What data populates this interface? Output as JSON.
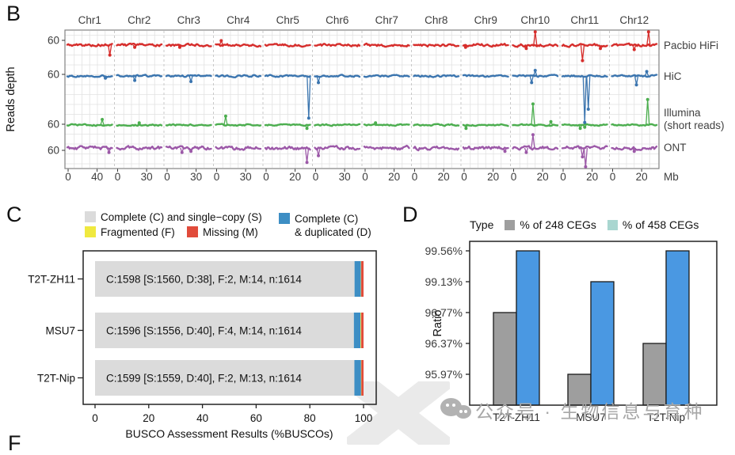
{
  "panel_labels": {
    "b": "B",
    "c": "C",
    "d": "D",
    "f_partial": "F"
  },
  "watermark": {
    "icon": "wechat-icon",
    "text": "公众号 · 生物信息与育种"
  },
  "chart_data": [
    {
      "id": "B",
      "type": "line",
      "description": "Sequencing reads depth along 12 rice chromosomes for four technologies",
      "facets": [
        "Chr1",
        "Chr2",
        "Chr3",
        "Chr4",
        "Chr5",
        "Chr6",
        "Chr7",
        "Chr8",
        "Chr9",
        "Chr10",
        "Chr11",
        "Chr12"
      ],
      "facet_xticks": [
        [
          "0",
          "40"
        ],
        [
          "0",
          "30"
        ],
        [
          "0",
          "30"
        ],
        [
          "0",
          "30"
        ],
        [
          "0",
          "20"
        ],
        [
          "0",
          "30"
        ],
        [
          "0",
          "20"
        ],
        [
          "0",
          "20"
        ],
        [
          "0",
          "20"
        ],
        [
          "0",
          "20"
        ],
        [
          "0",
          "20"
        ],
        [
          "0",
          "20"
        ]
      ],
      "x_unit": "Mb",
      "ylabel": "Reads depth",
      "ytick": "60",
      "grid": true,
      "series": [
        {
          "name": "Pacbio HiFi",
          "label_lines": [
            "Pacbio HiFi"
          ],
          "color": "#d62d2b",
          "baseline": 60,
          "noise": 1.0
        },
        {
          "name": "HiC",
          "label_lines": [
            "HiC"
          ],
          "color": "#3b75af",
          "baseline": 60,
          "noise": 0.7
        },
        {
          "name": "Illumina (short reads)",
          "label_lines": [
            "Illumina",
            "(short reads)"
          ],
          "color": "#4cae4f",
          "baseline": 60,
          "noise": 0.6
        },
        {
          "name": "ONT",
          "label_lines": [
            "ONT"
          ],
          "color": "#9c59a8",
          "baseline": 60,
          "noise": 1.3
        }
      ],
      "anomalies": [
        [
          0,
          0,
          0.95,
          -9
        ],
        [
          0,
          1,
          0.4,
          -2
        ],
        [
          0,
          2,
          0.3,
          -2
        ],
        [
          0,
          3,
          0.12,
          4
        ],
        [
          0,
          8,
          0.05,
          -2
        ],
        [
          0,
          9,
          0.3,
          -3
        ],
        [
          0,
          9,
          0.5,
          12
        ],
        [
          0,
          10,
          0.45,
          -14
        ],
        [
          0,
          10,
          0.85,
          -3
        ],
        [
          0,
          11,
          0.5,
          -4
        ],
        [
          0,
          11,
          0.82,
          12
        ],
        [
          1,
          0,
          0.85,
          -2
        ],
        [
          1,
          1,
          0.4,
          -4
        ],
        [
          1,
          2,
          0.55,
          -5
        ],
        [
          1,
          4,
          0.97,
          -38
        ],
        [
          1,
          5,
          0.08,
          -6
        ],
        [
          1,
          9,
          0.42,
          -6
        ],
        [
          1,
          9,
          0.5,
          5
        ],
        [
          1,
          10,
          0.5,
          -42
        ],
        [
          1,
          10,
          0.58,
          -30
        ],
        [
          1,
          11,
          0.55,
          -8
        ],
        [
          1,
          11,
          0.78,
          4
        ],
        [
          2,
          0,
          0.78,
          5
        ],
        [
          2,
          1,
          0.5,
          2
        ],
        [
          2,
          3,
          0.22,
          8
        ],
        [
          2,
          4,
          0.93,
          -3
        ],
        [
          2,
          6,
          0.25,
          2
        ],
        [
          2,
          8,
          0.06,
          -3
        ],
        [
          2,
          9,
          0.45,
          19
        ],
        [
          2,
          9,
          0.85,
          3
        ],
        [
          2,
          10,
          0.4,
          -3
        ],
        [
          2,
          10,
          0.5,
          -2
        ],
        [
          2,
          11,
          0.8,
          23
        ],
        [
          3,
          0,
          0.93,
          -4
        ],
        [
          3,
          2,
          0.35,
          -4
        ],
        [
          3,
          2,
          0.55,
          -3
        ],
        [
          3,
          4,
          0.93,
          -13
        ],
        [
          3,
          5,
          0.08,
          -7
        ],
        [
          3,
          8,
          0.93,
          -3
        ],
        [
          3,
          9,
          0.3,
          -4
        ],
        [
          3,
          9,
          0.45,
          12
        ],
        [
          3,
          10,
          0.45,
          -8
        ],
        [
          3,
          10,
          0.52,
          -17
        ],
        [
          3,
          11,
          0.5,
          -3
        ]
      ]
    },
    {
      "id": "C",
      "type": "bar",
      "subtype": "stacked-horizontal",
      "xlabel": "BUSCO Assessment Results (%BUSCOs)",
      "xticks": [
        "0",
        "20",
        "40",
        "60",
        "80",
        "100"
      ],
      "xlim": [
        0,
        100
      ],
      "n": 1614,
      "categories": [
        "T2T-ZH11",
        "MSU7",
        "T2T-Nip"
      ],
      "segment_order": [
        "S",
        "D",
        "F",
        "M"
      ],
      "colors": {
        "S": "#dbdbdb",
        "D": "#3d8ec4",
        "F": "#f0e93f",
        "M": "#e14b3b"
      },
      "bars": [
        {
          "category": "T2T-ZH11",
          "label": "C:1598 [S:1560, D:38], F:2, M:14, n:1614",
          "segments": {
            "S": 1560,
            "D": 38,
            "F": 2,
            "M": 14
          }
        },
        {
          "category": "MSU7",
          "label": "C:1596 [S:1556, D:40], F:4, M:14, n:1614",
          "segments": {
            "S": 1556,
            "D": 40,
            "F": 4,
            "M": 14
          }
        },
        {
          "category": "T2T-Nip",
          "label": "C:1599 [S:1559, D:40], F:2, M:13, n:1614",
          "segments": {
            "S": 1559,
            "D": 40,
            "F": 2,
            "M": 13
          }
        }
      ],
      "legend": [
        {
          "color": "#dbdbdb",
          "lines": [
            "Complete (C) and single−copy (S)"
          ]
        },
        {
          "color": "#f0e93f",
          "lines": [
            "Fragmented (F)"
          ]
        },
        {
          "color": "#e14b3b",
          "lines": [
            "Missing (M)"
          ]
        },
        {
          "color": "#3d8ec4",
          "lines": [
            "Complete (C)",
            "& duplicated (D)"
          ]
        }
      ],
      "legend_position": "top"
    },
    {
      "id": "D",
      "type": "bar",
      "subtype": "grouped-vertical",
      "legend_title": "Type",
      "ylabel": "Ratio",
      "categories": [
        "T2T-ZH11",
        "MSU7",
        "T2T-Nip"
      ],
      "yticks": [
        "99.56%",
        "99.13%",
        "96.77%",
        "96.37%",
        "95.97%"
      ],
      "series": [
        {
          "name": "% of 248 CEGs",
          "color": "#9e9e9e",
          "legend_color": "#9e9e9e",
          "values": [
            "96.77%",
            "95.97%",
            "96.37%"
          ]
        },
        {
          "name": "% of 458 CEGs",
          "color": "#4a98e2",
          "legend_color": "#a9d6d0",
          "values": [
            "99.56%",
            "99.13%",
            "99.56%"
          ]
        }
      ],
      "legend_position": "top"
    }
  ]
}
